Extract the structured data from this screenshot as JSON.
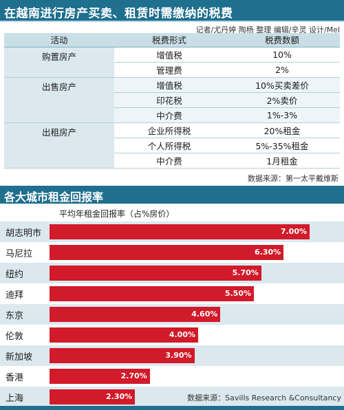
{
  "title1": "在越南进行房产买卖、租赁时需缴纳的税费",
  "credit": "记者/尤丹婷 陶杨 整理   编辑/辛灵  设计/Mel",
  "table": {
    "headers": [
      "活动",
      "税费形式",
      "税费数额"
    ],
    "groups": [
      {
        "activity": "购置房产",
        "rows": [
          [
            "增值税",
            "10%"
          ],
          [
            "管理费",
            "2%"
          ]
        ]
      },
      {
        "activity": "出售房产",
        "rows": [
          [
            "增值税",
            "10%买卖差价"
          ],
          [
            "印花税",
            "2%卖价"
          ],
          [
            "中介费",
            "1%-3%"
          ]
        ]
      },
      {
        "activity": "出租房产",
        "rows": [
          [
            "企业所得税",
            "20%租金"
          ],
          [
            "个人所得税",
            "5%-35%租金"
          ],
          [
            "中介费",
            "1月租金"
          ]
        ]
      }
    ]
  },
  "source1": "数据来源：第一太平戴维斯",
  "title2": "各大城市租金回报率",
  "chart_data": {
    "type": "bar",
    "title": "各大城市租金回报率",
    "subtitle": "平均年租金回报率（占%房价）",
    "categories": [
      "胡志明市",
      "马尼拉",
      "纽约",
      "迪拜",
      "东京",
      "伦敦",
      "新加坡",
      "香港",
      "上海"
    ],
    "values": [
      7.0,
      6.3,
      5.7,
      5.5,
      4.6,
      4.0,
      3.9,
      2.7,
      2.3
    ],
    "value_labels": [
      "7.00%",
      "6.30%",
      "5.70%",
      "5.50%",
      "4.60%",
      "4.00%",
      "3.90%",
      "2.70%",
      "2.30%"
    ],
    "bar_color": "#d11a2a"
  },
  "source2": "数据来源：Savills Research &Consultancy",
  "colors": {
    "header": "#1f6f8f",
    "shade": "#dbe9ef",
    "bar": "#d11a2a"
  }
}
